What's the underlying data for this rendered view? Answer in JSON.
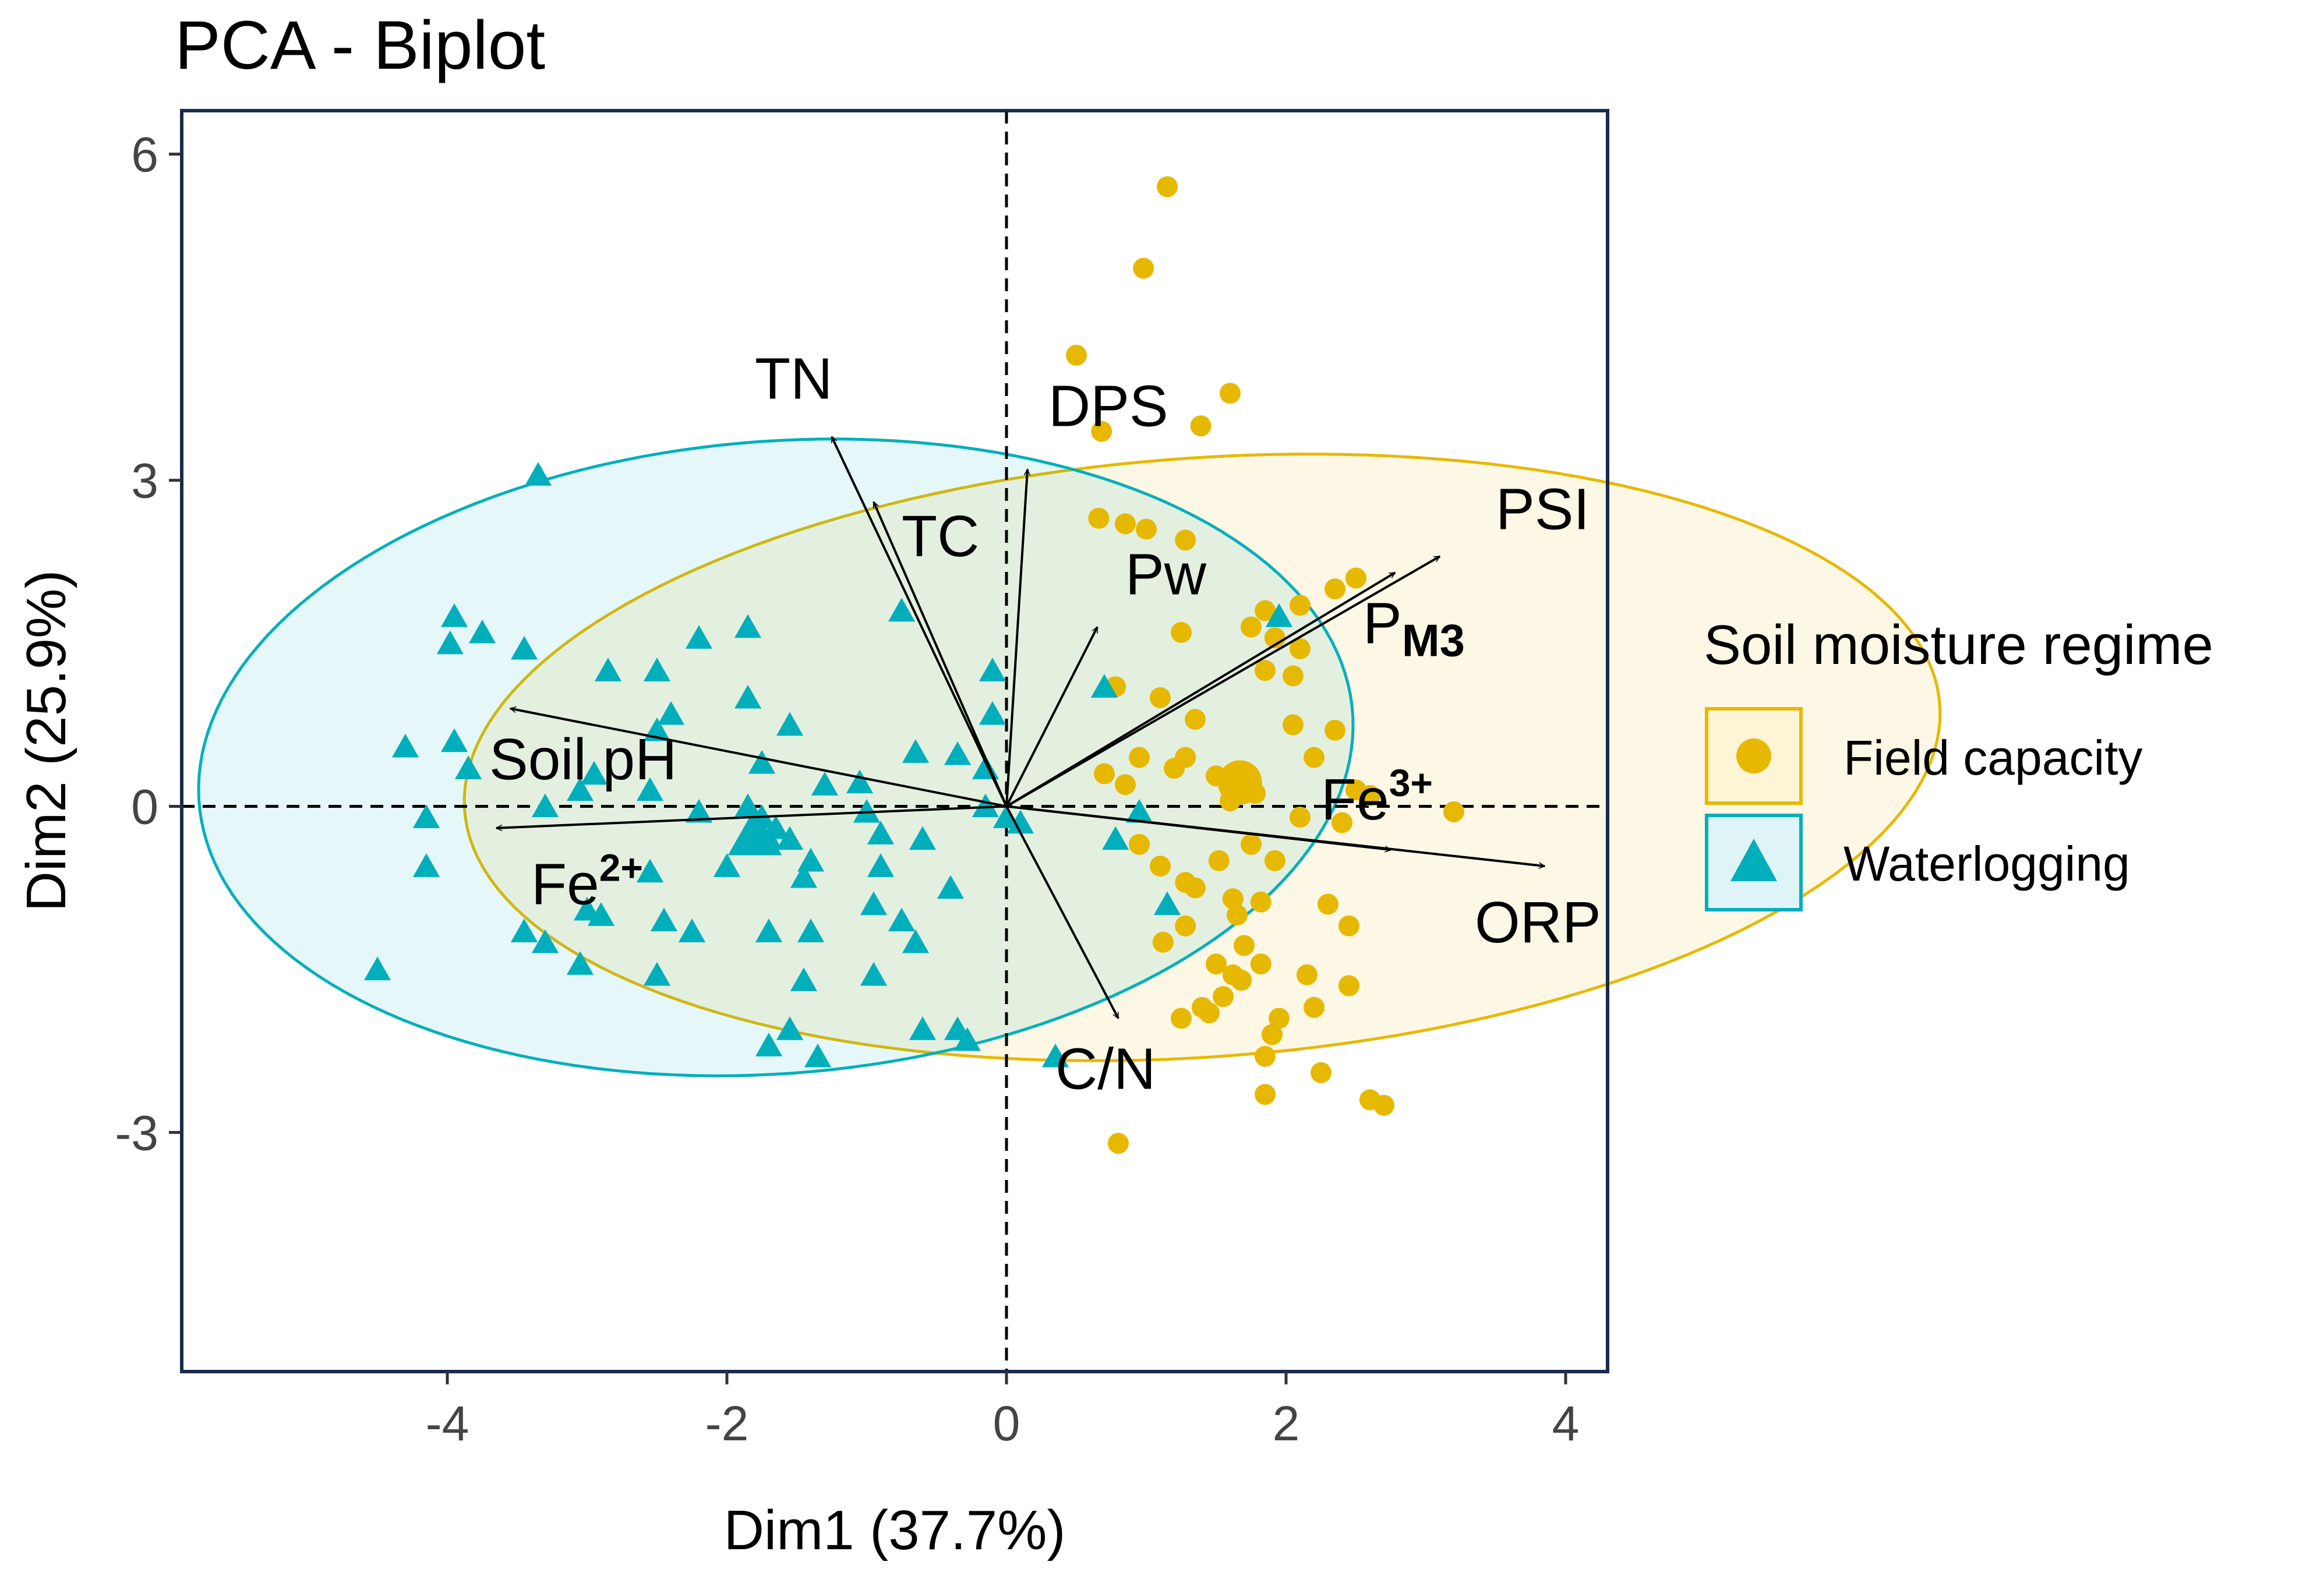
{
  "chart_data": {
    "type": "scatter",
    "subtype": "pca-biplot",
    "title": "PCA - Biplot",
    "xlabel": "Dim1 (37.7%)",
    "ylabel": "Dim2 (25.9%)",
    "xlim": [
      -5.9,
      4.3
    ],
    "ylim": [
      -5.2,
      6.4
    ],
    "x_ticks": [
      -4,
      -2,
      0,
      2,
      4
    ],
    "x_tick_labels": [
      "-4",
      "-2",
      "0",
      "2",
      "4"
    ],
    "y_ticks": [
      -3,
      0,
      3,
      6
    ],
    "y_tick_labels": [
      "-3",
      "0",
      "3",
      "6"
    ],
    "grid": false,
    "reference_lines": [
      {
        "orientation": "vertical",
        "value": 0,
        "style": "dashed"
      },
      {
        "orientation": "horizontal",
        "value": 0,
        "style": "dashed"
      }
    ],
    "legend": {
      "title": "Soil moisture regime",
      "position": "right",
      "entries": [
        {
          "label": "Field capacity",
          "marker": "circle",
          "color": "#E7B800"
        },
        {
          "label": "Waterlogging",
          "marker": "triangle",
          "color": "#00AFBB"
        }
      ]
    },
    "series": [
      {
        "name": "Field capacity",
        "color": "#E7B800",
        "marker": "circle",
        "ellipse": {
          "cx": 1.4,
          "cy": 0.45,
          "rx": 2.75,
          "ry": 5.3,
          "angle_deg": -84
        },
        "mean_point": [
          1.67,
          0.22
        ],
        "points": [
          [
            1.15,
            5.7
          ],
          [
            0.98,
            4.95
          ],
          [
            0.5,
            4.15
          ],
          [
            0.68,
            3.45
          ],
          [
            1.6,
            3.8
          ],
          [
            1.39,
            3.5
          ],
          [
            0.66,
            2.65
          ],
          [
            0.85,
            2.6
          ],
          [
            1.0,
            2.55
          ],
          [
            1.28,
            2.45
          ],
          [
            2.5,
            2.1
          ],
          [
            2.35,
            2.0
          ],
          [
            2.1,
            1.85
          ],
          [
            1.85,
            1.8
          ],
          [
            1.75,
            1.65
          ],
          [
            1.92,
            1.55
          ],
          [
            2.1,
            1.45
          ],
          [
            1.25,
            1.6
          ],
          [
            1.85,
            1.25
          ],
          [
            2.05,
            1.2
          ],
          [
            0.78,
            1.1
          ],
          [
            1.1,
            1.0
          ],
          [
            1.35,
            0.8
          ],
          [
            1.28,
            0.45
          ],
          [
            2.05,
            0.75
          ],
          [
            2.35,
            0.7
          ],
          [
            0.95,
            0.45
          ],
          [
            1.2,
            0.35
          ],
          [
            0.7,
            0.3
          ],
          [
            0.85,
            0.2
          ],
          [
            1.5,
            0.28
          ],
          [
            1.78,
            0.12
          ],
          [
            1.6,
            0.05
          ],
          [
            2.2,
            0.45
          ],
          [
            2.5,
            0.15
          ],
          [
            2.1,
            -0.1
          ],
          [
            2.4,
            -0.15
          ],
          [
            2.6,
            0.1
          ],
          [
            3.2,
            -0.05
          ],
          [
            0.95,
            -0.35
          ],
          [
            1.1,
            -0.55
          ],
          [
            1.35,
            -0.75
          ],
          [
            1.52,
            -0.5
          ],
          [
            1.75,
            -0.35
          ],
          [
            1.92,
            -0.5
          ],
          [
            1.28,
            -0.7
          ],
          [
            1.62,
            -0.85
          ],
          [
            1.82,
            -0.88
          ],
          [
            1.65,
            -1.0
          ],
          [
            2.45,
            -1.1
          ],
          [
            2.3,
            -0.9
          ],
          [
            1.7,
            -1.28
          ],
          [
            1.5,
            -1.45
          ],
          [
            1.62,
            -1.55
          ],
          [
            1.68,
            -1.6
          ],
          [
            1.82,
            -1.45
          ],
          [
            1.55,
            -1.75
          ],
          [
            1.4,
            -1.85
          ],
          [
            1.25,
            -1.95
          ],
          [
            1.45,
            -1.9
          ],
          [
            1.95,
            -1.95
          ],
          [
            2.2,
            -1.85
          ],
          [
            2.45,
            -1.65
          ],
          [
            1.9,
            -2.1
          ],
          [
            1.85,
            -2.3
          ],
          [
            2.25,
            -2.45
          ],
          [
            1.85,
            -2.65
          ],
          [
            2.6,
            -2.7
          ],
          [
            2.7,
            -2.75
          ],
          [
            0.8,
            -3.1
          ],
          [
            1.28,
            -1.1
          ],
          [
            1.12,
            -1.25
          ],
          [
            2.15,
            -1.55
          ]
        ]
      },
      {
        "name": "Waterlogging",
        "color": "#00AFBB",
        "marker": "triangle",
        "ellipse": {
          "cx": -1.65,
          "cy": 0.45,
          "rx": 4.15,
          "ry": 2.9,
          "angle_deg": 8
        },
        "mean_point": [
          -1.8,
          -0.25
        ],
        "points": [
          [
            -3.35,
            3.05
          ],
          [
            -0.75,
            1.8
          ],
          [
            -3.95,
            1.75
          ],
          [
            -3.75,
            1.6
          ],
          [
            -3.98,
            1.5
          ],
          [
            -3.45,
            1.45
          ],
          [
            -1.85,
            1.65
          ],
          [
            -2.2,
            1.55
          ],
          [
            -2.5,
            1.25
          ],
          [
            -2.85,
            1.25
          ],
          [
            -1.85,
            1.0
          ],
          [
            -2.4,
            0.85
          ],
          [
            -1.55,
            0.75
          ],
          [
            -2.5,
            0.7
          ],
          [
            -0.1,
            1.25
          ],
          [
            -0.1,
            0.85
          ],
          [
            0.7,
            1.1
          ],
          [
            -4.3,
            0.55
          ],
          [
            -3.95,
            0.6
          ],
          [
            -3.85,
            0.35
          ],
          [
            -2.95,
            0.3
          ],
          [
            -3.05,
            0.15
          ],
          [
            -1.75,
            0.4
          ],
          [
            -1.3,
            0.2
          ],
          [
            -1.05,
            0.22
          ],
          [
            -0.65,
            0.5
          ],
          [
            -0.35,
            0.48
          ],
          [
            -0.15,
            0.35
          ],
          [
            -4.15,
            -0.1
          ],
          [
            -3.3,
            0.0
          ],
          [
            -2.55,
            0.15
          ],
          [
            -2.2,
            -0.05
          ],
          [
            -1.85,
            0.0
          ],
          [
            -1.75,
            -0.1
          ],
          [
            -1.65,
            -0.2
          ],
          [
            -1.55,
            -0.3
          ],
          [
            -1.7,
            -0.3
          ],
          [
            -1.4,
            -0.5
          ],
          [
            -1.0,
            -0.05
          ],
          [
            -0.9,
            -0.25
          ],
          [
            -0.6,
            -0.3
          ],
          [
            -0.15,
            0.0
          ],
          [
            0.0,
            -0.1
          ],
          [
            0.1,
            -0.15
          ],
          [
            0.95,
            -0.05
          ],
          [
            -4.15,
            -0.55
          ],
          [
            -2.55,
            -0.6
          ],
          [
            -2.0,
            -0.55
          ],
          [
            -1.45,
            -0.65
          ],
          [
            -0.9,
            -0.55
          ],
          [
            -0.4,
            -0.75
          ],
          [
            -3.45,
            -1.15
          ],
          [
            -3.0,
            -0.95
          ],
          [
            -2.9,
            -1.0
          ],
          [
            -2.45,
            -1.05
          ],
          [
            -2.25,
            -1.15
          ],
          [
            -1.7,
            -1.15
          ],
          [
            -1.4,
            -1.15
          ],
          [
            -0.95,
            -0.9
          ],
          [
            -0.75,
            -1.05
          ],
          [
            -0.65,
            -1.25
          ],
          [
            -3.3,
            -1.25
          ],
          [
            -3.05,
            -1.45
          ],
          [
            -2.5,
            -1.55
          ],
          [
            -1.45,
            -1.6
          ],
          [
            -0.95,
            -1.55
          ],
          [
            -4.5,
            -1.5
          ],
          [
            -1.55,
            -2.05
          ],
          [
            -1.7,
            -2.2
          ],
          [
            -1.35,
            -2.3
          ],
          [
            -0.6,
            -2.05
          ],
          [
            -0.35,
            -2.05
          ],
          [
            -0.28,
            -2.15
          ],
          [
            0.35,
            -2.3
          ],
          [
            1.15,
            -0.9
          ],
          [
            0.78,
            -0.3
          ],
          [
            1.95,
            1.75
          ]
        ]
      }
    ],
    "variables": [
      {
        "name": "TN",
        "x": -1.25,
        "y": 3.4
      },
      {
        "name": "TC",
        "x": -0.95,
        "y": 2.8
      },
      {
        "name": "DPS",
        "x": 0.15,
        "y": 3.1
      },
      {
        "name": "Pw",
        "x": 0.65,
        "y": 1.65
      },
      {
        "name": "PSI",
        "x": 3.1,
        "y": 2.3
      },
      {
        "name": "PM3",
        "x": 2.78,
        "y": 2.15
      },
      {
        "name": "Fe3+",
        "x": 2.75,
        "y": -0.4
      },
      {
        "name": "ORP",
        "x": 3.85,
        "y": -0.55
      },
      {
        "name": "C/N",
        "x": 0.8,
        "y": -1.95
      },
      {
        "name": "Soil pH",
        "x": -3.55,
        "y": 0.9
      },
      {
        "name": "Fe2+",
        "x": -3.65,
        "y": -0.2
      }
    ],
    "variable_labels": [
      {
        "text": "TN",
        "x": -1.8,
        "y": 3.75
      },
      {
        "text": "TC",
        "x": -0.75,
        "y": 2.3
      },
      {
        "text": "DPS",
        "x": 0.3,
        "y": 3.5
      },
      {
        "text": "Pw",
        "x": 0.85,
        "y": 1.95
      },
      {
        "text": "PSI",
        "x": 3.5,
        "y": 2.55
      },
      {
        "text": "P",
        "sub": "M3",
        "x": 2.55,
        "y": 1.5
      },
      {
        "text": "Fe",
        "sup": "3+",
        "x": 2.25,
        "y": -0.12
      },
      {
        "text": "ORP",
        "x": 3.35,
        "y": -1.25
      },
      {
        "text": "C/N",
        "x": 0.35,
        "y": -2.6
      },
      {
        "text": "Soil pH",
        "x": -3.7,
        "y": 0.25
      },
      {
        "text": "Fe",
        "sup": "2+",
        "x": -3.4,
        "y": -0.9
      }
    ]
  }
}
